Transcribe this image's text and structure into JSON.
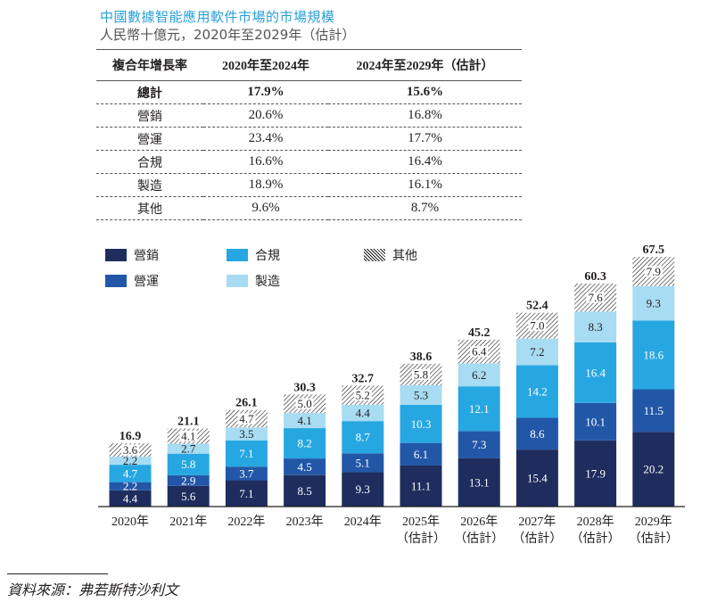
{
  "header": {
    "title": "中國數據智能應用軟件市場的市場規模",
    "subtitle": "人民幣十億元，2020年至2029年（估計）"
  },
  "cagr_table": {
    "headers": [
      "複合年增長率",
      "2020年至2024年",
      "2024年至2029年（估計）"
    ],
    "rows": [
      {
        "label": "總計",
        "v1": "17.9%",
        "v2": "15.6%"
      },
      {
        "label": "營銷",
        "v1": "20.6%",
        "v2": "16.8%"
      },
      {
        "label": "營運",
        "v1": "23.4%",
        "v2": "17.7%"
      },
      {
        "label": "合規",
        "v1": "16.6%",
        "v2": "16.4%"
      },
      {
        "label": "製造",
        "v1": "18.9%",
        "v2": "16.1%"
      },
      {
        "label": "其他",
        "v1": "9.6%",
        "v2": "8.7%"
      }
    ]
  },
  "legend": [
    {
      "name": "營銷",
      "color": "#1e2d5e"
    },
    {
      "name": "營運",
      "color": "#2257a8"
    },
    {
      "name": "合規",
      "color": "#27a7e1"
    },
    {
      "name": "製造",
      "color": "#a7dcf2"
    },
    {
      "name": "其他",
      "color": "hatch"
    }
  ],
  "chart_data": {
    "type": "bar",
    "stacked": true,
    "title": "中國數據智能應用軟件市場的市場規模",
    "subtitle": "人民幣十億元，2020年至2029年（估計）",
    "xlabel": "",
    "ylabel": "",
    "unit": "人民幣十億元",
    "legend_position": "top-left",
    "grid": false,
    "categories": [
      "2020年",
      "2021年",
      "2022年",
      "2023年",
      "2024年",
      "2025年",
      "2026年",
      "2027年",
      "2028年",
      "2029年"
    ],
    "category_sublabels": [
      "",
      "",
      "",
      "",
      "",
      "（估計）",
      "（估計）",
      "（估計）",
      "（估計）",
      "（估計）"
    ],
    "series": [
      {
        "name": "營銷",
        "color": "#1e2d5e",
        "values": [
          4.4,
          5.6,
          7.1,
          8.5,
          9.3,
          11.1,
          13.1,
          15.4,
          17.9,
          20.2
        ]
      },
      {
        "name": "營運",
        "color": "#2257a8",
        "values": [
          2.2,
          2.9,
          3.7,
          4.5,
          5.1,
          6.1,
          7.3,
          8.6,
          10.1,
          11.5
        ]
      },
      {
        "name": "合規",
        "color": "#27a7e1",
        "values": [
          4.7,
          5.8,
          7.1,
          8.2,
          8.7,
          10.3,
          12.1,
          14.2,
          16.4,
          18.6
        ]
      },
      {
        "name": "製造",
        "color": "#a7dcf2",
        "values": [
          2.2,
          2.7,
          3.5,
          4.1,
          4.4,
          5.3,
          6.2,
          7.2,
          8.3,
          9.3
        ]
      },
      {
        "name": "其他",
        "color": "hatch",
        "values": [
          3.6,
          4.1,
          4.7,
          5.0,
          5.2,
          5.8,
          6.4,
          7.0,
          7.6,
          7.9
        ]
      }
    ],
    "totals": [
      16.9,
      21.1,
      26.1,
      30.3,
      32.7,
      38.6,
      45.2,
      52.4,
      60.3,
      67.5
    ],
    "ylim": [
      0,
      67.5
    ]
  },
  "footer": {
    "source": "資料來源：弗若斯特沙利文"
  }
}
